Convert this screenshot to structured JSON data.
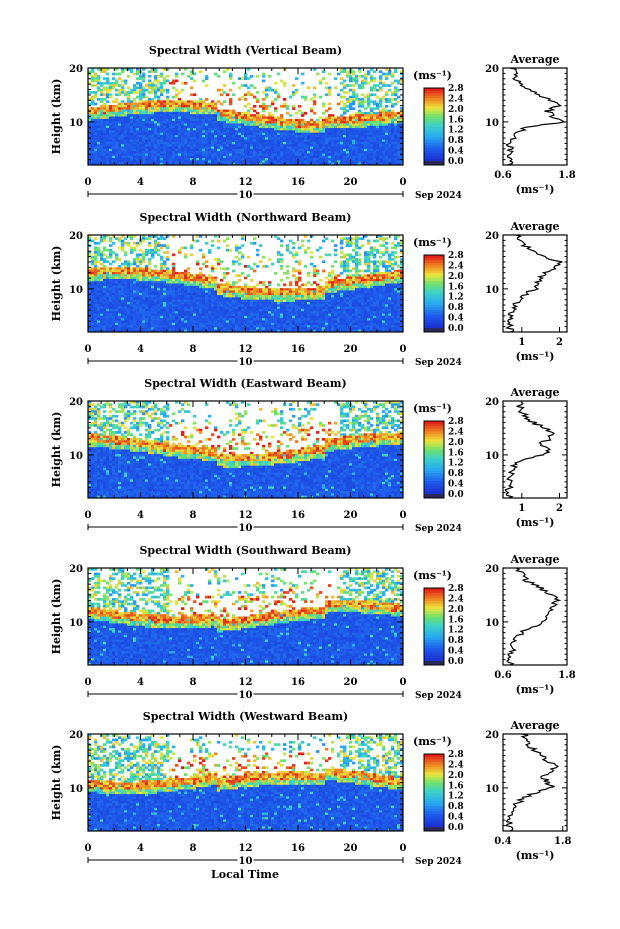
{
  "figure": {
    "shared_xlabel": "Local Time",
    "ylabel": "Height (km)",
    "date_label": "Sep 2024",
    "day_label": "10",
    "unit_label": "(ms⁻¹)",
    "avg_title": "Average",
    "avg_xlabel": "(ms⁻¹)",
    "colorbar_ticks": [
      "0.0",
      "0.4",
      "0.8",
      "1.2",
      "1.6",
      "2.0",
      "2.4",
      "2.8"
    ],
    "x_ticks": [
      "0",
      "4",
      "8",
      "12",
      "16",
      "20",
      "0"
    ],
    "y_ticks": [
      "10",
      "20"
    ],
    "colors": {
      "low": "#1c2fd6",
      "mid": "#29c5e8",
      "green": "#5fe07a",
      "yellow": "#f2e83a",
      "orange": "#f08a20",
      "high": "#e8201c"
    }
  },
  "chart_data": [
    {
      "type": "heatmap",
      "title": "Spectral Width (Vertical Beam)",
      "xlabel": "",
      "ylabel": "Height (km)",
      "xlim": [
        0,
        24
      ],
      "ylim": [
        2,
        20
      ],
      "zlim": [
        0.0,
        2.8
      ],
      "avg": {
        "title": "Average",
        "xticks": [
          "0.6",
          "1.8"
        ],
        "xlim": [
          0.6,
          1.8
        ],
        "height_km": [
          2,
          3,
          4,
          5,
          6,
          7,
          8,
          9,
          10,
          11,
          12,
          13,
          14,
          15,
          16,
          17,
          18,
          19,
          20
        ],
        "value": [
          0.75,
          0.72,
          0.73,
          0.72,
          0.74,
          0.78,
          0.85,
          1.05,
          1.75,
          1.55,
          1.45,
          1.65,
          1.5,
          1.25,
          1.1,
          0.95,
          0.85,
          0.8,
          0.8
        ]
      }
    },
    {
      "type": "heatmap",
      "title": "Spectral Width (Northward Beam)",
      "xlabel": "",
      "ylabel": "Height (km)",
      "xlim": [
        0,
        24
      ],
      "ylim": [
        2,
        20
      ],
      "zlim": [
        0.0,
        2.8
      ],
      "avg": {
        "title": "Average",
        "xticks": [
          "1",
          "2"
        ],
        "xlim": [
          0.5,
          2.2
        ],
        "height_km": [
          2,
          3,
          4,
          5,
          6,
          7,
          8,
          9,
          10,
          11,
          12,
          13,
          14,
          15,
          16,
          17,
          18,
          19,
          20
        ],
        "value": [
          0.7,
          0.7,
          0.72,
          0.72,
          0.75,
          0.8,
          0.95,
          1.1,
          1.35,
          1.4,
          1.5,
          1.6,
          1.9,
          2.0,
          1.6,
          1.3,
          1.1,
          1.0,
          0.95
        ]
      }
    },
    {
      "type": "heatmap",
      "title": "Spectral Width (Eastward Beam)",
      "xlabel": "",
      "ylabel": "Height (km)",
      "xlim": [
        0,
        24
      ],
      "ylim": [
        2,
        20
      ],
      "zlim": [
        0.0,
        2.8
      ],
      "avg": {
        "title": "Average",
        "xticks": [
          "1",
          "2"
        ],
        "xlim": [
          0.5,
          2.2
        ],
        "height_km": [
          2,
          3,
          4,
          5,
          6,
          7,
          8,
          9,
          10,
          11,
          12,
          13,
          14,
          15,
          16,
          17,
          18,
          19,
          20
        ],
        "value": [
          0.65,
          0.65,
          0.66,
          0.68,
          0.7,
          0.75,
          0.8,
          0.95,
          1.6,
          1.7,
          1.5,
          1.75,
          1.85,
          1.6,
          1.3,
          1.1,
          1.0,
          0.95,
          0.95
        ]
      }
    },
    {
      "type": "heatmap",
      "title": "Spectral Width (Southward Beam)",
      "xlabel": "",
      "ylabel": "Height (km)",
      "xlim": [
        0,
        24
      ],
      "ylim": [
        2,
        20
      ],
      "zlim": [
        0.0,
        2.8
      ],
      "avg": {
        "title": "Average",
        "xticks": [
          "0.6",
          "1.8"
        ],
        "xlim": [
          0.6,
          1.8
        ],
        "height_km": [
          2,
          3,
          4,
          5,
          6,
          7,
          8,
          9,
          10,
          11,
          12,
          13,
          14,
          15,
          16,
          17,
          18,
          19,
          20
        ],
        "value": [
          0.75,
          0.74,
          0.75,
          0.76,
          0.78,
          0.85,
          0.95,
          1.15,
          1.35,
          1.45,
          1.5,
          1.55,
          1.6,
          1.5,
          1.35,
          1.15,
          1.0,
          0.95,
          0.9
        ]
      }
    },
    {
      "type": "heatmap",
      "title": "Spectral Width (Westward Beam)",
      "xlabel": "Local Time",
      "ylabel": "Height (km)",
      "xlim": [
        0,
        24
      ],
      "ylim": [
        2,
        20
      ],
      "zlim": [
        0.0,
        2.8
      ],
      "avg": {
        "title": "Average",
        "xticks": [
          "0.4",
          "1.8"
        ],
        "xlim": [
          0.4,
          1.9
        ],
        "height_km": [
          2,
          3,
          4,
          5,
          6,
          7,
          8,
          9,
          10,
          11,
          12,
          13,
          14,
          15,
          16,
          17,
          18,
          19,
          20
        ],
        "value": [
          0.55,
          0.55,
          0.56,
          0.58,
          0.6,
          0.7,
          0.85,
          1.1,
          1.55,
          1.45,
          1.35,
          1.5,
          1.6,
          1.45,
          1.3,
          1.15,
          1.0,
          0.95,
          0.9
        ]
      }
    }
  ]
}
